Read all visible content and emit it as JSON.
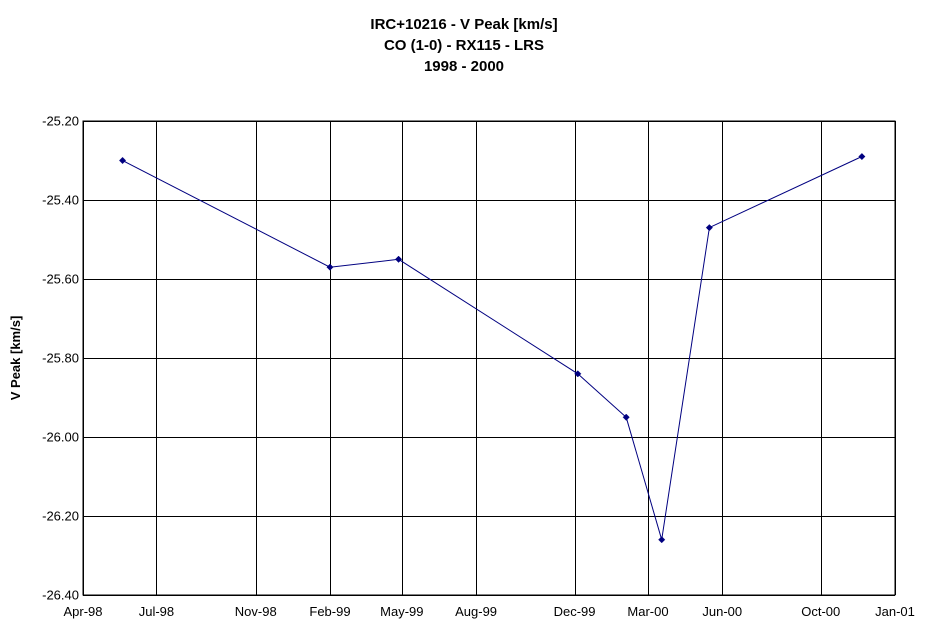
{
  "chart_data": {
    "type": "line",
    "title_lines": [
      "IRC+10216 - V Peak [km/s]",
      "CO (1-0) - RX115 - LRS",
      "1998 - 2000"
    ],
    "xlabel": "",
    "ylabel": "V Peak [km/s]",
    "x_axis": {
      "type": "date",
      "range": [
        "1998-04-01",
        "2001-01-01"
      ],
      "ticks": [
        {
          "date": "1998-04-01",
          "label": "Apr-98"
        },
        {
          "date": "1998-07-01",
          "label": "Jul-98"
        },
        {
          "date": "1998-11-01",
          "label": "Nov-98"
        },
        {
          "date": "1999-02-01",
          "label": "Feb-99"
        },
        {
          "date": "1999-05-01",
          "label": "May-99"
        },
        {
          "date": "1999-08-01",
          "label": "Aug-99"
        },
        {
          "date": "1999-12-01",
          "label": "Dec-99"
        },
        {
          "date": "2000-03-01",
          "label": "Mar-00"
        },
        {
          "date": "2000-06-01",
          "label": "Jun-00"
        },
        {
          "date": "2000-10-01",
          "label": "Oct-00"
        },
        {
          "date": "2001-01-01",
          "label": "Jan-01"
        }
      ]
    },
    "y_axis": {
      "range": [
        -26.4,
        -25.2
      ],
      "ticks": [
        {
          "value": -25.2,
          "label": "-25.20"
        },
        {
          "value": -25.4,
          "label": "-25.40"
        },
        {
          "value": -25.6,
          "label": "-25.60"
        },
        {
          "value": -25.8,
          "label": "-25.80"
        },
        {
          "value": -26.0,
          "label": "-26.00"
        },
        {
          "value": -26.2,
          "label": "-26.20"
        },
        {
          "value": -26.4,
          "label": "-26.40"
        }
      ]
    },
    "grid": true,
    "legend": "none",
    "series": [
      {
        "color": "#000080",
        "marker": "diamond",
        "points": [
          {
            "x": "1998-05-20",
            "y": -25.3
          },
          {
            "x": "1999-02-01",
            "y": -25.57
          },
          {
            "x": "1999-04-27",
            "y": -25.55
          },
          {
            "x": "1999-12-05",
            "y": -25.84
          },
          {
            "x": "2000-02-03",
            "y": -25.95
          },
          {
            "x": "2000-03-18",
            "y": -26.26
          },
          {
            "x": "2000-05-16",
            "y": -25.47
          },
          {
            "x": "2000-11-21",
            "y": -25.29
          }
        ]
      }
    ]
  }
}
